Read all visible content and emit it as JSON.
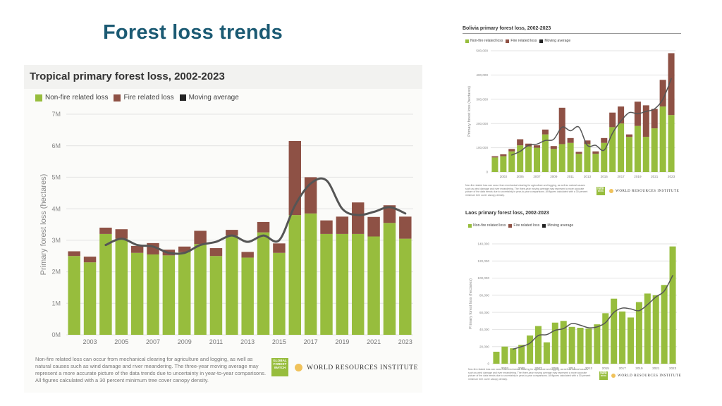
{
  "slide": {
    "title": "Forest loss trends"
  },
  "colors": {
    "nonfire": "#97bd3d",
    "fire": "#8e5145",
    "avg": "#555555",
    "title": "#1b5a73"
  },
  "legend": {
    "nonfire": "Non-fire related loss",
    "fire": "Fire related loss",
    "avg": "Moving average"
  },
  "footer": {
    "main_note": "Non-fire related loss can occur from mechanical clearing for agriculture and logging, as well as natural causes such as wind damage and river meandering. The three-year moving average may represent a more accurate picture of the data trends due to uncertainty in year-to-year comparisons. All figures calculated with a 30 percent minimum tree cover canopy density.",
    "gfw": "GLOBAL FOREST WATCH",
    "wri": "WORLD RESOURCES INSTITUTE"
  },
  "chart_data": [
    {
      "type": "bar",
      "title": "Tropical primary forest loss, 2002-2023",
      "ylabel": "Primary forest loss (hectares)",
      "xlabel": "",
      "ylim": [
        0,
        7000000
      ],
      "yticks": [
        0,
        1000000,
        2000000,
        3000000,
        4000000,
        5000000,
        6000000,
        7000000
      ],
      "ytick_labels": [
        "0M",
        "1M",
        "2M",
        "3M",
        "4M",
        "5M",
        "6M",
        "7M"
      ],
      "categories": [
        "2002",
        "2003",
        "2004",
        "2005",
        "2006",
        "2007",
        "2008",
        "2009",
        "2010",
        "2011",
        "2012",
        "2013",
        "2014",
        "2015",
        "2016",
        "2017",
        "2018",
        "2019",
        "2020",
        "2021",
        "2022",
        "2023"
      ],
      "xtick_labels": [
        "2003",
        "2005",
        "2007",
        "2009",
        "2011",
        "2013",
        "2015",
        "2017",
        "2019",
        "2021",
        "2023"
      ],
      "series": [
        {
          "name": "Non-fire related loss",
          "values": [
            2500000,
            2300000,
            3200000,
            3050000,
            2600000,
            2550000,
            2520000,
            2620000,
            2880000,
            2500000,
            3150000,
            2450000,
            3250000,
            2600000,
            3800000,
            3850000,
            3200000,
            3200000,
            3200000,
            3120000,
            3550000,
            3050000
          ]
        },
        {
          "name": "Fire related loss",
          "values": [
            150000,
            180000,
            200000,
            300000,
            220000,
            360000,
            180000,
            180000,
            420000,
            250000,
            180000,
            180000,
            330000,
            300000,
            2350000,
            1150000,
            430000,
            550000,
            1000000,
            620000,
            560000,
            700000
          ]
        },
        {
          "name": "Moving average",
          "values": [
            null,
            null,
            2850000,
            3050000,
            2850000,
            2800000,
            2600000,
            2600000,
            2850000,
            2950000,
            3150000,
            2950000,
            3150000,
            3000000,
            4100000,
            4800000,
            4900000,
            4000000,
            3800000,
            3900000,
            4050000,
            3850000
          ]
        }
      ]
    },
    {
      "type": "bar",
      "title": "Bolivia primary forest loss, 2002-2023",
      "ylabel": "Primary forest loss (hectares)",
      "ylim": [
        0,
        500000
      ],
      "ytick_labels": [
        "0",
        "100,000",
        "200,000",
        "300,000",
        "400,000",
        "500,000"
      ],
      "categories": [
        "2002",
        "2003",
        "2004",
        "2005",
        "2006",
        "2007",
        "2008",
        "2009",
        "2010",
        "2011",
        "2012",
        "2013",
        "2014",
        "2015",
        "2016",
        "2017",
        "2018",
        "2019",
        "2020",
        "2021",
        "2022",
        "2023"
      ],
      "xtick_labels": [
        "2003",
        "2005",
        "2007",
        "2009",
        "2011",
        "2013",
        "2015",
        "2017",
        "2019",
        "2021",
        "2023"
      ],
      "series": [
        {
          "name": "Non-fire related loss",
          "values": [
            60000,
            65000,
            85000,
            110000,
            105000,
            100000,
            155000,
            95000,
            115000,
            120000,
            75000,
            115000,
            75000,
            120000,
            185000,
            200000,
            145000,
            190000,
            145000,
            180000,
            270000,
            235000
          ]
        },
        {
          "name": "Fire related loss",
          "values": [
            5000,
            8000,
            10000,
            25000,
            12000,
            10000,
            20000,
            12000,
            150000,
            20000,
            8000,
            15000,
            10000,
            20000,
            60000,
            70000,
            10000,
            100000,
            130000,
            80000,
            110000,
            255000
          ]
        },
        {
          "name": "Moving average",
          "values": [
            null,
            null,
            70000,
            85000,
            110000,
            115000,
            130000,
            135000,
            185000,
            170000,
            185000,
            110000,
            110000,
            90000,
            160000,
            210000,
            245000,
            240000,
            250000,
            260000,
            300000,
            385000
          ]
        }
      ],
      "note": "Non-fire related loss can occur from mechanical clearing for agriculture and logging, as well as natural causes such as wind damage and river meandering. The three-year moving average may represent a more accurate picture of the data trends due to uncertainty in year-to-year comparisons. All figures calculated with a 30 percent minimum tree cover canopy density."
    },
    {
      "type": "bar",
      "title": "Laos primary forest loss, 2002-2023",
      "ylabel": "Primary forest loss (hectares)",
      "ylim": [
        0,
        140000
      ],
      "ytick_labels": [
        "0",
        "20,000",
        "40,000",
        "60,000",
        "80,000",
        "100,000",
        "120,000",
        "140,000"
      ],
      "categories": [
        "2002",
        "2003",
        "2004",
        "2005",
        "2006",
        "2007",
        "2008",
        "2009",
        "2010",
        "2011",
        "2012",
        "2013",
        "2014",
        "2015",
        "2016",
        "2017",
        "2018",
        "2019",
        "2020",
        "2021",
        "2022",
        "2023"
      ],
      "xtick_labels": [
        "2003",
        "2005",
        "2007",
        "2009",
        "2011",
        "2013",
        "2015",
        "2017",
        "2019",
        "2021",
        "2023"
      ],
      "series": [
        {
          "name": "Non-fire related loss",
          "values": [
            14000,
            20000,
            18000,
            22000,
            33000,
            44000,
            25000,
            48000,
            50000,
            43000,
            42000,
            41000,
            46000,
            59000,
            76000,
            61000,
            54000,
            72000,
            82000,
            80000,
            92000,
            137000
          ]
        },
        {
          "name": "Fire related loss",
          "values": [
            0,
            0,
            0,
            0,
            0,
            0,
            0,
            0,
            0,
            0,
            0,
            0,
            0,
            0,
            0,
            0,
            0,
            0,
            0,
            0,
            0,
            0
          ]
        },
        {
          "name": "Moving average",
          "values": [
            null,
            null,
            17000,
            20000,
            24000,
            33000,
            34000,
            39000,
            41000,
            47000,
            45000,
            42000,
            43000,
            48000,
            60000,
            65000,
            64000,
            62000,
            69000,
            78000,
            85000,
            103000
          ]
        }
      ],
      "note": "Non-fire related loss can occur from mechanical clearing for agriculture and logging, as well as natural causes such as wind damage and river meandering. The three-year moving average may represent a more accurate picture of the data trends due to uncertainty in year-to-year comparisons. All figures calculated with a 30 percent minimum tree cover canopy density."
    }
  ]
}
